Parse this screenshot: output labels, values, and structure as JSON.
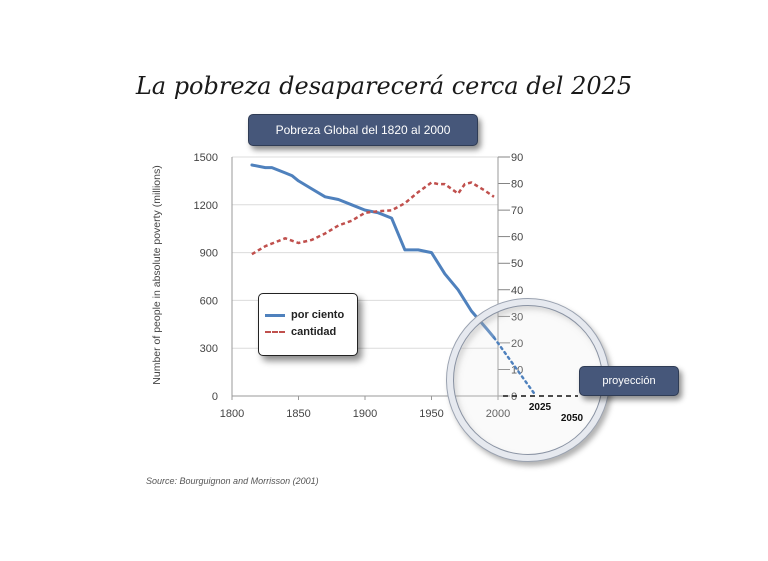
{
  "title": "La pobreza desaparecerá cerca del 2025",
  "subtitle": "Pobreza Global del 1820 al 2000",
  "projection_label": "proyección",
  "source": "Source: Bourguignon and Morrisson (2001)",
  "colors": {
    "percent": "#4f81bd",
    "count": "#c0504d",
    "box": "#46577a"
  },
  "chart_data": {
    "type": "line",
    "title": "Pobreza Global del 1820 al 2000",
    "xlabel": "",
    "ylabel": "Number of people in absolute poverty (millions)",
    "y2label": "",
    "xlim": [
      1800,
      2000
    ],
    "ylim": [
      0,
      1500
    ],
    "y2lim": [
      0,
      90
    ],
    "x_ticks": [
      "1800",
      "1850",
      "1900",
      "1950",
      "2000"
    ],
    "y_ticks": [
      "0",
      "300",
      "600",
      "900",
      "1200",
      "1500"
    ],
    "y2_ticks": [
      "0",
      "10",
      "20",
      "30",
      "40",
      "50",
      "60",
      "70",
      "80",
      "90"
    ],
    "extra_x_ticks": [
      "2025",
      "2050"
    ],
    "legend_position": "inside-lower-left",
    "grid": "horizontal",
    "series": [
      {
        "name": "por ciento",
        "axis": "right",
        "x": [
          1815,
          1825,
          1830,
          1840,
          1845,
          1850,
          1860,
          1870,
          1880,
          1890,
          1900,
          1910,
          1920,
          1930,
          1940,
          1950,
          1960,
          1970,
          1980,
          1992,
          1997
        ],
        "values": [
          87,
          86,
          86,
          84,
          83,
          81,
          78,
          75,
          74,
          72,
          70,
          69,
          67,
          55,
          55,
          54,
          46,
          40,
          32,
          25,
          22
        ]
      },
      {
        "name": "cantidad",
        "axis": "left",
        "x": [
          1815,
          1825,
          1840,
          1850,
          1860,
          1870,
          1880,
          1890,
          1900,
          1910,
          1920,
          1930,
          1940,
          1950,
          1955,
          1960,
          1970,
          1975,
          1980,
          1990,
          1997
        ],
        "values": [
          890,
          940,
          990,
          960,
          980,
          1020,
          1070,
          1100,
          1150,
          1160,
          1165,
          1210,
          1280,
          1340,
          1330,
          1330,
          1270,
          1330,
          1340,
          1290,
          1250
        ]
      }
    ],
    "projection": {
      "axis": "right",
      "x": [
        1997,
        2025
      ],
      "values": [
        22,
        0
      ]
    }
  }
}
